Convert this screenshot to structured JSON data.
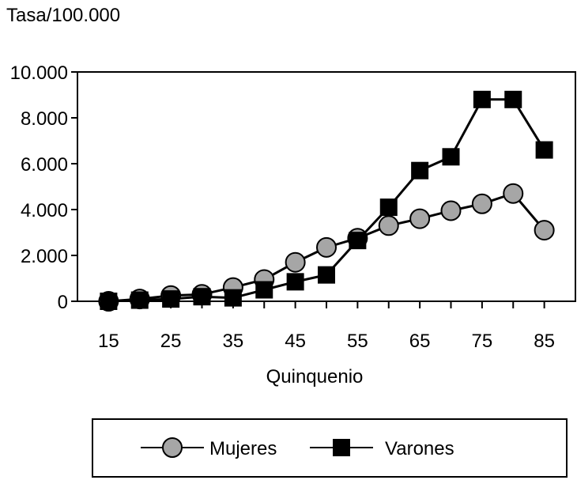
{
  "chart_data": {
    "type": "line",
    "title": "",
    "ylabel": "Tasa/100.000",
    "xlabel": "Quinquenio",
    "x": [
      15,
      20,
      25,
      30,
      35,
      40,
      45,
      50,
      55,
      60,
      65,
      70,
      75,
      80,
      85
    ],
    "xlim": [
      10,
      90
    ],
    "ylim": [
      0,
      10000
    ],
    "x_ticks": [
      15,
      25,
      35,
      45,
      55,
      65,
      75,
      85
    ],
    "x_tick_labels": [
      "15",
      "25",
      "35",
      "45",
      "55",
      "65",
      "75",
      "85"
    ],
    "y_ticks": [
      0,
      2000,
      4000,
      6000,
      8000,
      10000
    ],
    "y_tick_labels": [
      "0",
      "2.000",
      "4.000",
      "6.000",
      "8.000",
      "10.000"
    ],
    "grid": false,
    "legend_position": "bottom",
    "series": [
      {
        "name": "Mujeres",
        "marker": "circle",
        "color": "#a6a6a6",
        "values": [
          0,
          100,
          250,
          300,
          600,
          950,
          1700,
          2350,
          2750,
          3300,
          3600,
          3950,
          4250,
          4700,
          3100
        ]
      },
      {
        "name": "Varones",
        "marker": "square",
        "color": "#000000",
        "values": [
          0,
          50,
          100,
          200,
          150,
          500,
          850,
          1150,
          2650,
          4100,
          5700,
          6300,
          8800,
          8800,
          6600
        ]
      }
    ]
  }
}
